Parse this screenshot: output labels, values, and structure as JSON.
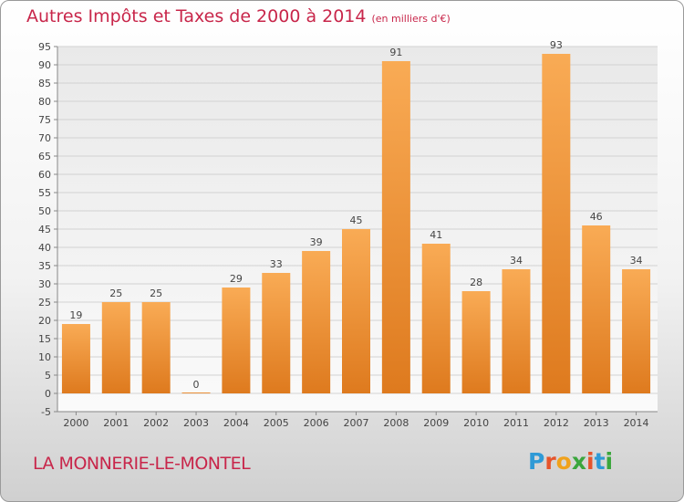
{
  "title": "Autres Impôts et Taxes de 2000 à 2014",
  "unit": "(en milliers d'€)",
  "place": "LA MONNERIE-LE-MONTEL",
  "logo": "Proxiti",
  "colors": {
    "bar_light": "#f8a850",
    "bar_dark": "#e07d22",
    "text": "#c8264a"
  },
  "chart_data": {
    "type": "bar",
    "title": "Autres Impôts et Taxes de 2000 à 2014",
    "subtitle": "(en milliers d'€)",
    "xlabel": "",
    "ylabel": "",
    "ylim": [
      -5,
      95
    ],
    "yticks": [
      -5,
      0,
      5,
      10,
      15,
      20,
      25,
      30,
      35,
      40,
      45,
      50,
      55,
      60,
      65,
      70,
      75,
      80,
      85,
      90,
      95
    ],
    "grid": true,
    "categories": [
      "2000",
      "2001",
      "2002",
      "2003",
      "2004",
      "2005",
      "2006",
      "2007",
      "2008",
      "2009",
      "2010",
      "2011",
      "2012",
      "2013",
      "2014"
    ],
    "values": [
      19,
      25,
      25,
      0,
      29,
      33,
      39,
      45,
      91,
      41,
      28,
      34,
      93,
      46,
      34
    ]
  }
}
